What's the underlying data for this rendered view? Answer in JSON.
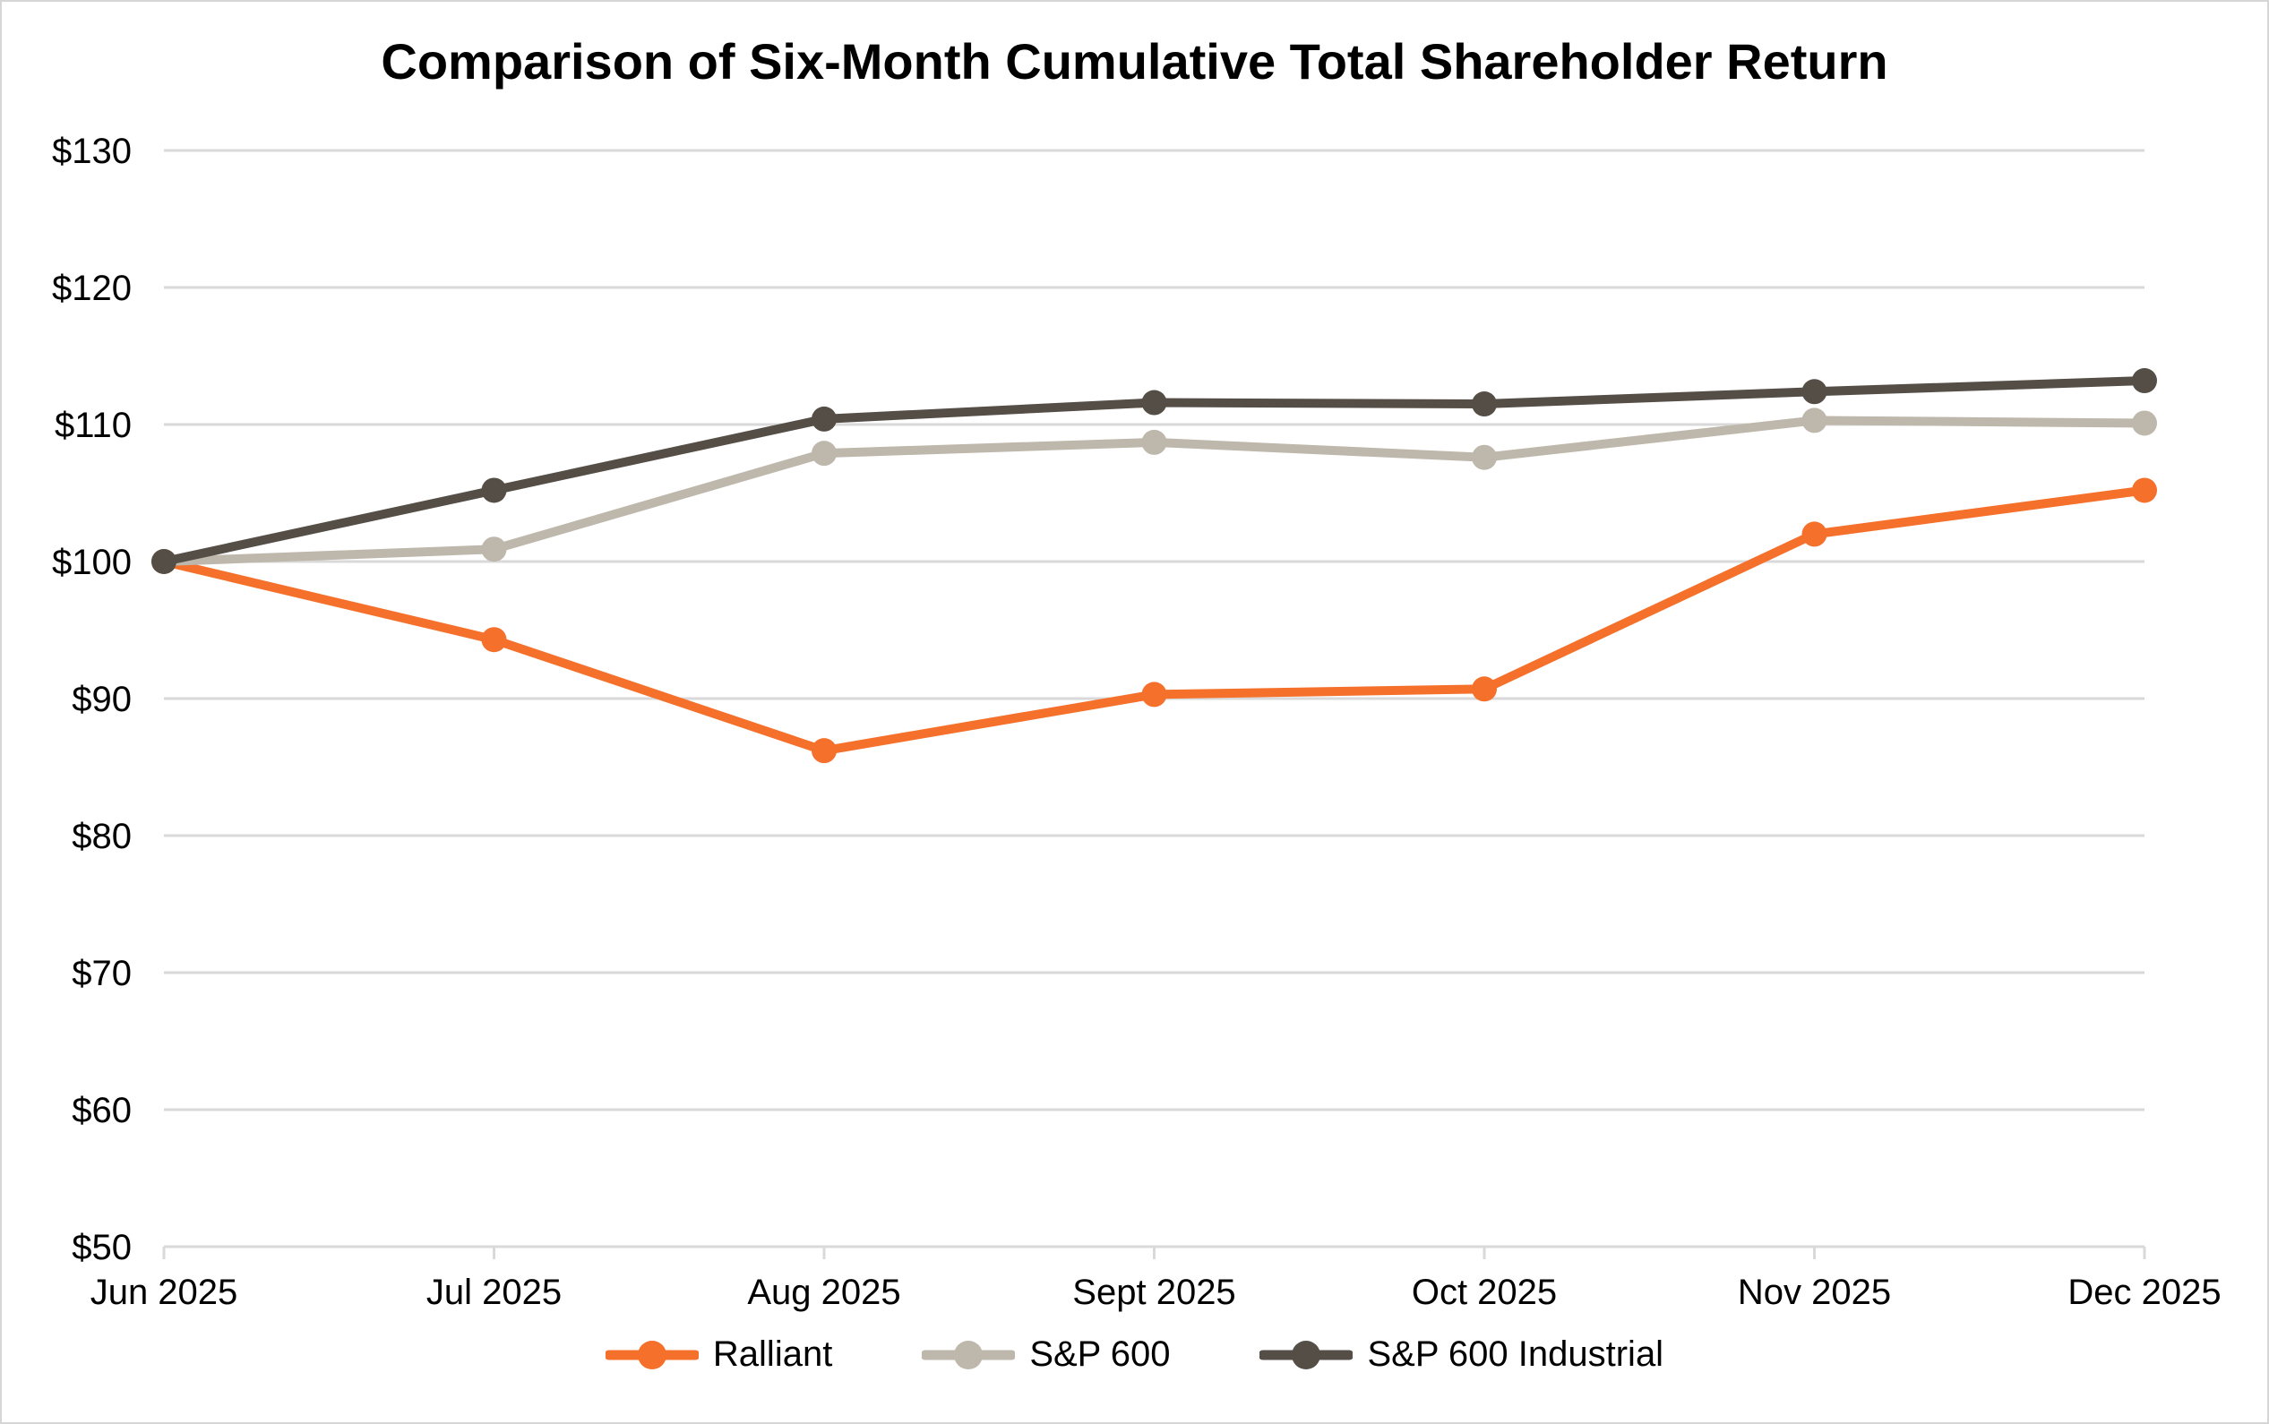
{
  "chart_data": {
    "type": "line",
    "title": "Comparison of Six-Month Cumulative Total Shareholder Return",
    "categories": [
      "Jun 2025",
      "Jul 2025",
      "Aug 2025",
      "Sept 2025",
      "Oct 2025",
      "Nov 2025",
      "Dec 2025"
    ],
    "series": [
      {
        "name": "Ralliant",
        "color": "#F4702B",
        "values": [
          100,
          94.3,
          86.2,
          90.3,
          90.7,
          102.0,
          105.2
        ]
      },
      {
        "name": "S&P 600",
        "color": "#BEB7AB",
        "values": [
          100,
          100.9,
          107.9,
          108.7,
          107.6,
          110.3,
          110.1
        ]
      },
      {
        "name": "S&P 600 Industrial",
        "color": "#544E47",
        "values": [
          100,
          105.2,
          110.4,
          111.6,
          111.5,
          112.4,
          113.2
        ]
      }
    ],
    "y_axis": {
      "min": 50,
      "max": 130,
      "step": 10,
      "tick_prefix": "$",
      "tick_labels": [
        "$50",
        "$60",
        "$70",
        "$80",
        "$90",
        "$100",
        "$110",
        "$120",
        "$130"
      ]
    },
    "x_axis": {
      "labels": [
        "Jun 2025",
        "Jul 2025",
        "Aug 2025",
        "Sept 2025",
        "Oct 2025",
        "Nov 2025",
        "Dec 2025"
      ]
    },
    "grid": true,
    "legend_position": "bottom",
    "ylim": [
      50,
      130
    ]
  },
  "styles": {
    "grid_color": "#D9D9D9",
    "axis_color": "#D9D9D9",
    "text_color": "#000000",
    "background": "#FFFFFF",
    "border_color": "#D6D6D6"
  }
}
